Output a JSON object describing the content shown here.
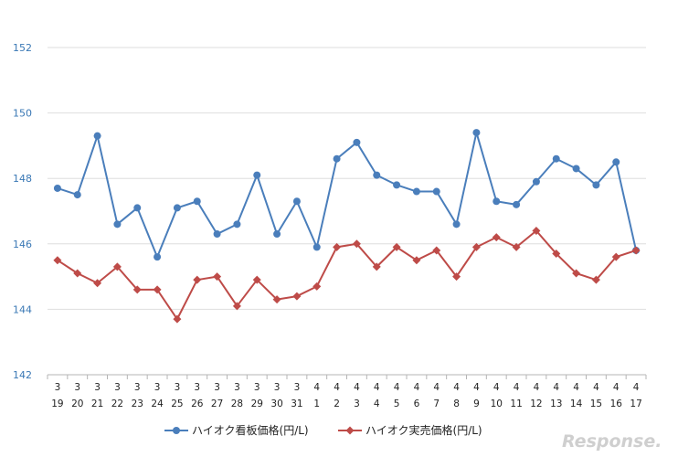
{
  "chart_data": {
    "type": "line",
    "x": [
      {
        "month": "3",
        "day": "19"
      },
      {
        "month": "3",
        "day": "20"
      },
      {
        "month": "3",
        "day": "21"
      },
      {
        "month": "3",
        "day": "22"
      },
      {
        "month": "3",
        "day": "23"
      },
      {
        "month": "3",
        "day": "24"
      },
      {
        "month": "3",
        "day": "25"
      },
      {
        "month": "3",
        "day": "26"
      },
      {
        "month": "3",
        "day": "27"
      },
      {
        "month": "3",
        "day": "28"
      },
      {
        "month": "3",
        "day": "29"
      },
      {
        "month": "3",
        "day": "30"
      },
      {
        "month": "3",
        "day": "31"
      },
      {
        "month": "4",
        "day": "1"
      },
      {
        "month": "4",
        "day": "2"
      },
      {
        "month": "4",
        "day": "3"
      },
      {
        "month": "4",
        "day": "4"
      },
      {
        "month": "4",
        "day": "5"
      },
      {
        "month": "4",
        "day": "6"
      },
      {
        "month": "4",
        "day": "7"
      },
      {
        "month": "4",
        "day": "8"
      },
      {
        "month": "4",
        "day": "9"
      },
      {
        "month": "4",
        "day": "10"
      },
      {
        "month": "4",
        "day": "11"
      },
      {
        "month": "4",
        "day": "12"
      },
      {
        "month": "4",
        "day": "13"
      },
      {
        "month": "4",
        "day": "14"
      },
      {
        "month": "4",
        "day": "15"
      },
      {
        "month": "4",
        "day": "16"
      },
      {
        "month": "4",
        "day": "17"
      }
    ],
    "series": [
      {
        "name": "ハイオク看板価格(円/L)",
        "color": "#4a7ebb",
        "marker": "circle",
        "values": [
          147.7,
          147.5,
          149.3,
          146.6,
          147.1,
          145.6,
          147.1,
          147.3,
          146.3,
          146.6,
          148.1,
          146.3,
          147.3,
          145.9,
          148.6,
          149.1,
          148.1,
          147.8,
          147.6,
          147.6,
          146.6,
          149.4,
          147.3,
          147.2,
          147.9,
          148.6,
          148.3,
          147.8,
          148.5,
          145.8
        ]
      },
      {
        "name": "ハイオク実売価格(円/L)",
        "color": "#be4b48",
        "marker": "diamond",
        "values": [
          145.5,
          145.1,
          144.8,
          145.3,
          144.6,
          144.6,
          143.7,
          144.9,
          145.0,
          144.1,
          144.9,
          144.3,
          144.4,
          144.7,
          145.9,
          146.0,
          145.3,
          145.9,
          145.5,
          145.8,
          145.0,
          145.9,
          146.2,
          145.9,
          146.4,
          145.7,
          145.1,
          144.9,
          145.6,
          145.8
        ]
      }
    ],
    "yticks": [
      "142",
      "144",
      "146",
      "148",
      "150",
      "152"
    ],
    "ylim": [
      142,
      152
    ],
    "grid": true,
    "legend_position": "bottom"
  },
  "watermark": "Response."
}
